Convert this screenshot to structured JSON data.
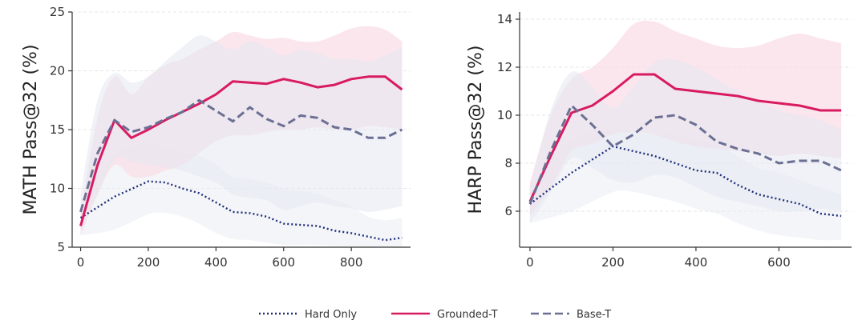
{
  "chart_data": [
    {
      "type": "line",
      "title": "",
      "xlabel": "",
      "ylabel": "MATH Pass@32 (%)",
      "xlim": [
        -25,
        975
      ],
      "ylim": [
        5,
        25
      ],
      "xticks": [
        0,
        200,
        400,
        600,
        800
      ],
      "yticks": [
        5,
        10,
        15,
        20,
        25
      ],
      "grid": "horizontal-dashed",
      "series": [
        {
          "name": "Hard Only",
          "color": "#1f2d7a",
          "band_color": "#e9ecf3",
          "x": [
            0,
            100,
            200,
            250,
            300,
            350,
            400,
            450,
            500,
            550,
            600,
            650,
            700,
            750,
            800,
            850,
            900,
            950
          ],
          "values": [
            7.5,
            9.3,
            10.6,
            10.5,
            10.0,
            9.6,
            8.8,
            8.0,
            7.9,
            7.6,
            7.0,
            6.9,
            6.8,
            6.4,
            6.2,
            5.9,
            5.6,
            5.8
          ],
          "lower": [
            6.0,
            6.5,
            7.8,
            7.9,
            7.6,
            7.0,
            6.2,
            5.7,
            5.6,
            5.4,
            5.2,
            5.2,
            5.2,
            5.1,
            5.1,
            5.0,
            5.0,
            5.0
          ],
          "upper": [
            9.0,
            12.8,
            13.8,
            13.5,
            13.0,
            12.8,
            12.0,
            11.0,
            10.8,
            10.5,
            10.0,
            9.8,
            9.5,
            9.0,
            8.5,
            7.6,
            7.3,
            7.5
          ]
        },
        {
          "name": "Grounded-T",
          "color": "#d81b60",
          "band_color": "#f9dde7",
          "x": [
            0,
            50,
            100,
            150,
            200,
            250,
            300,
            350,
            400,
            450,
            500,
            550,
            600,
            650,
            700,
            750,
            800,
            850,
            900,
            950
          ],
          "values": [
            6.8,
            12.0,
            15.8,
            14.3,
            15.0,
            15.8,
            16.5,
            17.2,
            18.0,
            19.1,
            19.0,
            18.9,
            19.3,
            19.0,
            18.6,
            18.8,
            19.3,
            19.5,
            19.5,
            18.4
          ],
          "lower": [
            6.0,
            9.5,
            12.0,
            11.0,
            11.0,
            11.5,
            12.0,
            13.0,
            14.0,
            14.5,
            14.5,
            14.8,
            15.0,
            15.0,
            15.2,
            15.0,
            15.0,
            15.3,
            15.2,
            15.0
          ],
          "upper": [
            7.8,
            16.0,
            19.5,
            18.0,
            19.5,
            20.5,
            21.0,
            21.8,
            22.5,
            23.3,
            23.0,
            22.7,
            22.8,
            22.5,
            22.5,
            23.0,
            23.6,
            23.8,
            23.5,
            22.5
          ]
        },
        {
          "name": "Base-T",
          "color": "#6b6f93",
          "band_color": "#e4e7f0",
          "x": [
            0,
            50,
            100,
            150,
            200,
            250,
            300,
            350,
            400,
            450,
            500,
            550,
            600,
            650,
            700,
            750,
            800,
            850,
            900,
            950
          ],
          "values": [
            8.0,
            13.0,
            15.8,
            14.8,
            15.2,
            15.9,
            16.5,
            17.5,
            16.6,
            15.7,
            16.9,
            15.9,
            15.3,
            16.2,
            16.0,
            15.2,
            15.0,
            14.3,
            14.3,
            15.0
          ],
          "lower": [
            6.5,
            9.5,
            12.5,
            12.3,
            12.0,
            11.8,
            11.5,
            11.0,
            10.5,
            9.5,
            9.2,
            9.0,
            8.2,
            8.5,
            8.8,
            8.5,
            8.3,
            8.0,
            8.2,
            8.5
          ],
          "upper": [
            9.5,
            17.5,
            19.8,
            19.0,
            19.5,
            20.8,
            22.0,
            23.0,
            22.5,
            21.8,
            22.5,
            22.0,
            21.3,
            21.8,
            21.5,
            21.0,
            21.0,
            20.8,
            21.3,
            22.0
          ]
        }
      ]
    },
    {
      "type": "line",
      "title": "",
      "xlabel": "",
      "ylabel": "HARP Pass@32 (%)",
      "xlim": [
        -25,
        775
      ],
      "ylim": [
        4.5,
        14.3
      ],
      "xticks": [
        0,
        200,
        400,
        600
      ],
      "yticks": [
        6,
        8,
        10,
        12,
        14
      ],
      "grid": "horizontal-dashed",
      "series": [
        {
          "name": "Hard Only",
          "color": "#1f2d7a",
          "band_color": "#e9ecf3",
          "x": [
            0,
            100,
            200,
            250,
            300,
            350,
            400,
            450,
            500,
            550,
            600,
            650,
            700,
            750
          ],
          "values": [
            6.3,
            7.6,
            8.7,
            8.5,
            8.3,
            8.0,
            7.7,
            7.6,
            7.1,
            6.7,
            6.5,
            6.3,
            5.9,
            5.8
          ],
          "lower": [
            5.5,
            6.0,
            6.8,
            6.8,
            6.6,
            6.4,
            6.1,
            5.9,
            5.5,
            5.2,
            5.0,
            4.9,
            4.8,
            4.8
          ],
          "upper": [
            7.0,
            9.0,
            9.4,
            9.3,
            9.2,
            9.2,
            9.0,
            8.8,
            8.3,
            7.8,
            7.6,
            7.3,
            7.0,
            6.7
          ]
        },
        {
          "name": "Grounded-T",
          "color": "#d81b60",
          "band_color": "#f9dde7",
          "x": [
            0,
            50,
            100,
            150,
            200,
            250,
            300,
            350,
            400,
            450,
            500,
            550,
            600,
            650,
            700,
            750
          ],
          "values": [
            6.4,
            8.3,
            10.1,
            10.4,
            11.0,
            11.7,
            11.7,
            11.1,
            11.0,
            10.9,
            10.8,
            10.6,
            10.5,
            10.4,
            10.2,
            10.2
          ],
          "lower": [
            5.8,
            7.0,
            8.5,
            8.8,
            9.2,
            9.3,
            9.2,
            8.9,
            8.7,
            8.6,
            8.5,
            8.4,
            8.3,
            8.4,
            8.3,
            8.2
          ],
          "upper": [
            7.2,
            10.0,
            11.5,
            12.0,
            12.8,
            13.8,
            13.9,
            13.5,
            13.2,
            12.9,
            12.8,
            12.9,
            13.2,
            13.4,
            13.2,
            13.0
          ]
        },
        {
          "name": "Base-T",
          "color": "#6b6f93",
          "band_color": "#e4e7f0",
          "x": [
            0,
            50,
            100,
            150,
            200,
            250,
            300,
            350,
            400,
            450,
            500,
            550,
            600,
            650,
            700,
            750
          ],
          "values": [
            6.3,
            8.5,
            10.4,
            9.6,
            8.7,
            9.2,
            9.9,
            10.0,
            9.6,
            8.9,
            8.6,
            8.4,
            8.0,
            8.1,
            8.1,
            7.7
          ],
          "lower": [
            5.5,
            6.8,
            8.2,
            7.8,
            7.3,
            7.2,
            7.5,
            7.4,
            7.0,
            6.6,
            6.4,
            6.2,
            6.0,
            6.0,
            6.1,
            6.0
          ],
          "upper": [
            7.0,
            10.2,
            11.8,
            11.2,
            10.3,
            11.2,
            12.2,
            12.3,
            12.0,
            11.5,
            11.0,
            10.6,
            10.2,
            10.0,
            9.8,
            9.4
          ]
        }
      ]
    }
  ],
  "legend": {
    "placement": "bottom-center",
    "items": [
      {
        "label": "Hard Only",
        "style": "dotted",
        "color": "#1f2d7a"
      },
      {
        "label": "Grounded-T",
        "style": "solid",
        "color": "#d81b60"
      },
      {
        "label": "Base-T",
        "style": "dashed",
        "color": "#6b6f93"
      }
    ]
  }
}
